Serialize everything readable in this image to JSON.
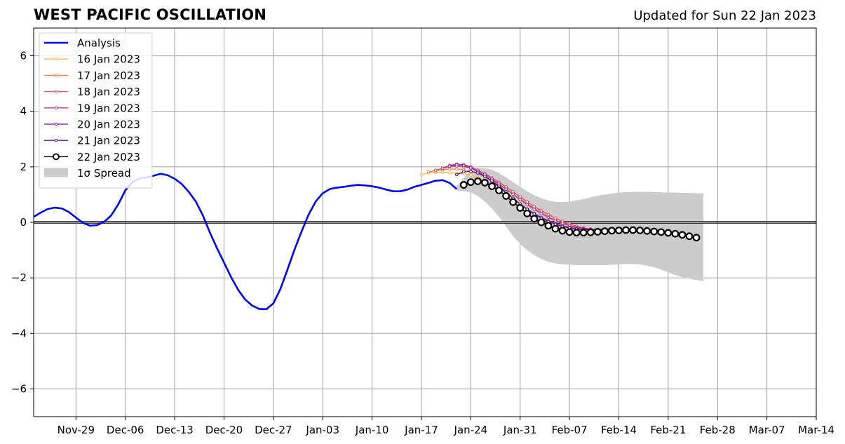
{
  "header": {
    "title": "WEST PACIFIC OSCILLATION",
    "updated": "Updated for Sun 22 Jan 2023"
  },
  "chart_data": {
    "type": "line",
    "title": "WEST PACIFIC OSCILLATION",
    "subtitle": "Updated for Sun 22 Jan 2023",
    "xlabel": "",
    "ylabel": "",
    "x_unit": "days since 2022-11-20",
    "xlim": [
      0,
      111
    ],
    "ylim": [
      -7,
      7
    ],
    "grid": true,
    "legend_position": "top-left",
    "x_ticks": [
      {
        "x": 6,
        "label": "Nov-29"
      },
      {
        "x": 13,
        "label": "Dec-06"
      },
      {
        "x": 20,
        "label": "Dec-13"
      },
      {
        "x": 27,
        "label": "Dec-20"
      },
      {
        "x": 34,
        "label": "Dec-27"
      },
      {
        "x": 41,
        "label": "Jan-03"
      },
      {
        "x": 48,
        "label": "Jan-10"
      },
      {
        "x": 55,
        "label": "Jan-17"
      },
      {
        "x": 62,
        "label": "Jan-24"
      },
      {
        "x": 69,
        "label": "Jan-31"
      },
      {
        "x": 76,
        "label": "Feb-07"
      },
      {
        "x": 83,
        "label": "Feb-14"
      },
      {
        "x": 90,
        "label": "Feb-21"
      },
      {
        "x": 97,
        "label": "Feb-28"
      },
      {
        "x": 104,
        "label": "Mar-07"
      },
      {
        "x": 111,
        "label": "Mar-14"
      }
    ],
    "y_ticks": [
      {
        "y": 6,
        "label": "6"
      },
      {
        "y": 4,
        "label": "4"
      },
      {
        "y": 2,
        "label": "2"
      },
      {
        "y": 0,
        "label": "0"
      },
      {
        "y": -2,
        "label": "−2"
      },
      {
        "y": -4,
        "label": "−4"
      },
      {
        "y": -6,
        "label": "−6"
      }
    ],
    "analysis": {
      "name": "Analysis",
      "color": "#0000ee",
      "x_start": 0,
      "values": [
        0.2,
        0.35,
        0.48,
        0.53,
        0.5,
        0.37,
        0.17,
        -0.02,
        -0.12,
        -0.1,
        0.02,
        0.25,
        0.65,
        1.15,
        1.45,
        1.58,
        1.62,
        1.68,
        1.75,
        1.7,
        1.57,
        1.38,
        1.1,
        0.75,
        0.25,
        -0.37,
        -0.93,
        -1.45,
        -1.97,
        -2.43,
        -2.78,
        -3.0,
        -3.12,
        -3.13,
        -2.92,
        -2.4,
        -1.7,
        -0.98,
        -0.33,
        0.28,
        0.75,
        1.05,
        1.2,
        1.25,
        1.28,
        1.32,
        1.35,
        1.33,
        1.3,
        1.25,
        1.18,
        1.12,
        1.12,
        1.18,
        1.28,
        1.35,
        1.42,
        1.5,
        1.52,
        1.42,
        1.2
      ]
    },
    "forecasts": [
      {
        "name": "16 Jan 2023",
        "color": "#f9b944",
        "x_start": 55,
        "values": [
          1.72,
          1.78,
          1.8,
          1.8,
          1.78,
          1.76,
          1.75,
          1.7,
          1.6,
          1.48,
          1.32,
          1.15,
          0.96,
          0.78,
          0.6,
          0.45,
          0.3,
          0.15,
          0.02,
          -0.1,
          -0.2,
          -0.27,
          -0.33,
          -0.37,
          -0.38,
          -0.39,
          -0.4,
          -0.39,
          -0.37,
          -0.35,
          -0.32,
          -0.3
        ]
      },
      {
        "name": "17 Jan 2023",
        "color": "#ec7f48",
        "x_start": 56,
        "values": [
          1.82,
          1.86,
          1.9,
          1.92,
          1.92,
          1.9,
          1.85,
          1.76,
          1.64,
          1.5,
          1.35,
          1.19,
          1.02,
          0.85,
          0.67,
          0.5,
          0.35,
          0.2,
          0.08,
          -0.02,
          -0.1,
          -0.18,
          -0.23,
          -0.27,
          -0.3,
          -0.31,
          -0.31,
          -0.3,
          -0.29,
          -0.28
        ]
      },
      {
        "name": "18 Jan 2023",
        "color": "#d8536b",
        "x_start": 57,
        "values": [
          1.88,
          1.95,
          2.0,
          2.02,
          2.0,
          1.95,
          1.86,
          1.75,
          1.6,
          1.45,
          1.28,
          1.1,
          0.92,
          0.74,
          0.57,
          0.42,
          0.28,
          0.15,
          0.04,
          -0.06,
          -0.14,
          -0.2,
          -0.24,
          -0.27,
          -0.28,
          -0.28,
          -0.27,
          -0.26
        ]
      },
      {
        "name": "19 Jan 2023",
        "color": "#b8368c",
        "x_start": 58,
        "values": [
          1.95,
          2.05,
          2.1,
          2.08,
          2.0,
          1.88,
          1.73,
          1.56,
          1.38,
          1.2,
          1.01,
          0.82,
          0.64,
          0.47,
          0.32,
          0.18,
          0.06,
          -0.04,
          -0.12,
          -0.18,
          -0.22,
          -0.25,
          -0.27,
          -0.28,
          -0.28,
          -0.27
        ]
      },
      {
        "name": "20 Jan 2023",
        "color": "#8a2aa0",
        "x_start": 59,
        "values": [
          2.02,
          2.07,
          2.05,
          1.96,
          1.83,
          1.66,
          1.47,
          1.27,
          1.06,
          0.86,
          0.66,
          0.48,
          0.32,
          0.18,
          0.06,
          -0.04,
          -0.12,
          -0.18,
          -0.22,
          -0.24,
          -0.25,
          -0.25,
          -0.24,
          -0.23
        ]
      },
      {
        "name": "21 Jan 2023",
        "color": "#4b1a8e",
        "x_start": 60,
        "values": [
          1.72,
          1.82,
          1.83,
          1.78,
          1.66,
          1.5,
          1.3,
          1.09,
          0.87,
          0.66,
          0.47,
          0.3,
          0.15,
          0.03,
          -0.07,
          -0.15,
          -0.2,
          -0.24,
          -0.26,
          -0.27,
          -0.27,
          -0.26,
          -0.25
        ]
      }
    ],
    "current": {
      "name": "22 Jan 2023",
      "color": "#000000",
      "x_start": 61,
      "values": [
        1.35,
        1.45,
        1.48,
        1.43,
        1.3,
        1.15,
        0.95,
        0.73,
        0.52,
        0.32,
        0.13,
        0.0,
        -0.12,
        -0.23,
        -0.3,
        -0.35,
        -0.37,
        -0.37,
        -0.36,
        -0.34,
        -0.32,
        -0.3,
        -0.29,
        -0.28,
        -0.28,
        -0.29,
        -0.31,
        -0.33,
        -0.35,
        -0.38,
        -0.41,
        -0.45,
        -0.5,
        -0.55
      ]
    },
    "spread": {
      "name": "1σ Spread",
      "color": "#cccccc",
      "x_start": 60,
      "upper": [
        1.3,
        1.6,
        1.85,
        1.95,
        1.95,
        1.9,
        1.78,
        1.62,
        1.45,
        1.28,
        1.12,
        0.98,
        0.87,
        0.79,
        0.74,
        0.73,
        0.75,
        0.79,
        0.84,
        0.9,
        0.96,
        1.0,
        1.04,
        1.07,
        1.09,
        1.1,
        1.1,
        1.1,
        1.09,
        1.08,
        1.07,
        1.07,
        1.06,
        1.06,
        1.05,
        1.05
      ],
      "lower": [
        1.15,
        1.12,
        1.08,
        0.95,
        0.75,
        0.5,
        0.2,
        -0.15,
        -0.5,
        -0.78,
        -1.0,
        -1.18,
        -1.32,
        -1.42,
        -1.48,
        -1.51,
        -1.53,
        -1.54,
        -1.54,
        -1.54,
        -1.54,
        -1.54,
        -1.53,
        -1.52,
        -1.5,
        -1.5,
        -1.52,
        -1.56,
        -1.62,
        -1.7,
        -1.8,
        -1.9,
        -1.97,
        -2.03,
        -2.08,
        -2.12
      ]
    }
  }
}
